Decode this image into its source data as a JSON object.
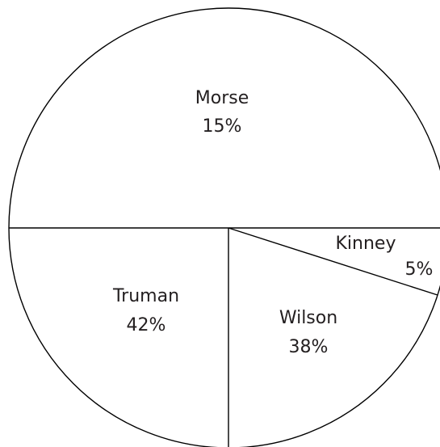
{
  "chart_data": {
    "type": "pie",
    "slices": [
      {
        "label": "Morse",
        "value": 15,
        "value_label": "15%"
      },
      {
        "label": "Kinney",
        "value": 5,
        "value_label": "5%"
      },
      {
        "label": "Wilson",
        "value": 38,
        "value_label": "38%"
      },
      {
        "label": "Truman",
        "value": 42,
        "value_label": "42%"
      }
    ],
    "colors": {
      "fill": "#ffffff",
      "stroke": "#000000",
      "text": "#231f20"
    },
    "legend": "none"
  }
}
